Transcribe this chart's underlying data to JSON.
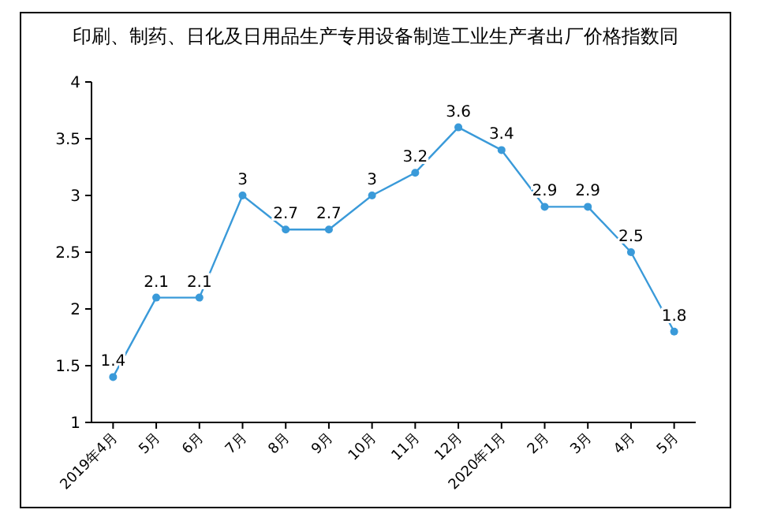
{
  "chart_data": {
    "type": "line",
    "title": "印刷、制药、日化及日用品生产专用设备制造工业生产者出厂价格指数同",
    "categories": [
      "2019年4月",
      "5月",
      "6月",
      "7月",
      "8月",
      "9月",
      "10月",
      "11月",
      "12月",
      "2020年1月",
      "2月",
      "3月",
      "4月",
      "5月"
    ],
    "series": [
      {
        "color": "#3a9ad9",
        "values": [
          1.4,
          2.1,
          2.1,
          3,
          2.7,
          2.7,
          3,
          3.2,
          3.6,
          3.4,
          2.9,
          2.9,
          2.5,
          1.8
        ]
      }
    ],
    "ylim": [
      1,
      4
    ],
    "yticks": [
      1,
      1.5,
      2,
      2.5,
      3,
      3.5,
      4
    ],
    "marker": "circle",
    "data_labels": true,
    "grid": false
  }
}
